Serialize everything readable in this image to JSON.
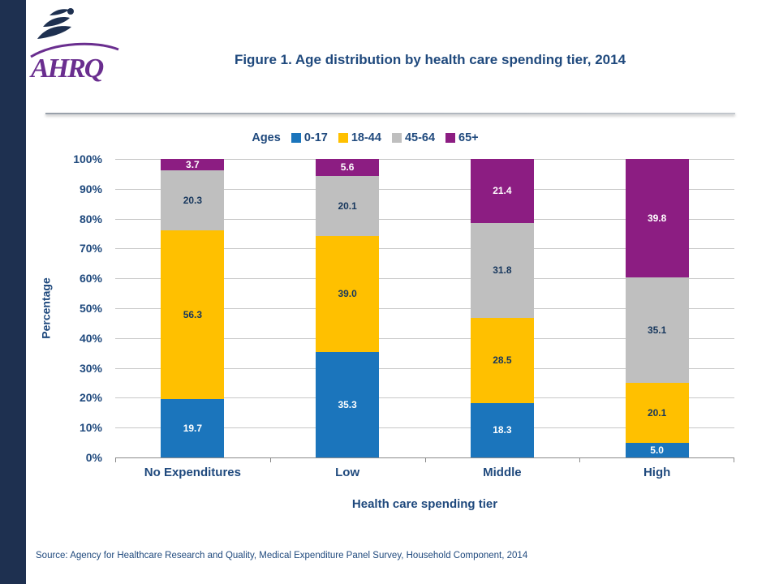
{
  "header": {
    "logo_text": "AHRQ",
    "title": "Figure 1. Age distribution by health care spending tier, 2014"
  },
  "colors": {
    "text_navy": "#1F497D",
    "label_dark_navy": "#17375D",
    "strip_navy": "#1E3050",
    "logo_purple": "#6A2E8F",
    "bar_blue": "#1B75BC",
    "bar_yellow": "#FFC000",
    "bar_gray": "#BFBFBF",
    "bar_purple": "#8C1D82"
  },
  "chart_data": {
    "type": "bar",
    "stacked": true,
    "title": "Figure 1. Age distribution by health care spending tier, 2014",
    "legend_label": "Ages",
    "legend_position": "top-center",
    "grid": true,
    "categories": [
      "No Expenditures",
      "Low",
      "Middle",
      "High"
    ],
    "series": [
      {
        "name": "0-17",
        "color": "#1B75BC",
        "label_color": "#FFFFFF",
        "values": [
          19.7,
          35.3,
          18.3,
          5.0
        ]
      },
      {
        "name": "18-44",
        "color": "#FFC000",
        "label_color": "#17375D",
        "values": [
          56.3,
          39.0,
          28.5,
          20.1
        ]
      },
      {
        "name": "45-64",
        "color": "#BFBFBF",
        "label_color": "#17375D",
        "values": [
          20.3,
          20.1,
          31.8,
          35.1
        ]
      },
      {
        "name": "65+",
        "color": "#8C1D82",
        "label_color": "#FFFFFF",
        "values": [
          3.7,
          5.6,
          21.4,
          39.8
        ]
      }
    ],
    "xlabel": "Health care spending tier",
    "ylabel": "Percentage",
    "ylim": [
      0,
      100
    ],
    "yticks": [
      0,
      10,
      20,
      30,
      40,
      50,
      60,
      70,
      80,
      90,
      100
    ],
    "ytick_suffix": "%"
  },
  "footer": {
    "source": "Source: Agency for Healthcare Research and Quality, Medical Expenditure Panel Survey, Household Component, 2014"
  }
}
